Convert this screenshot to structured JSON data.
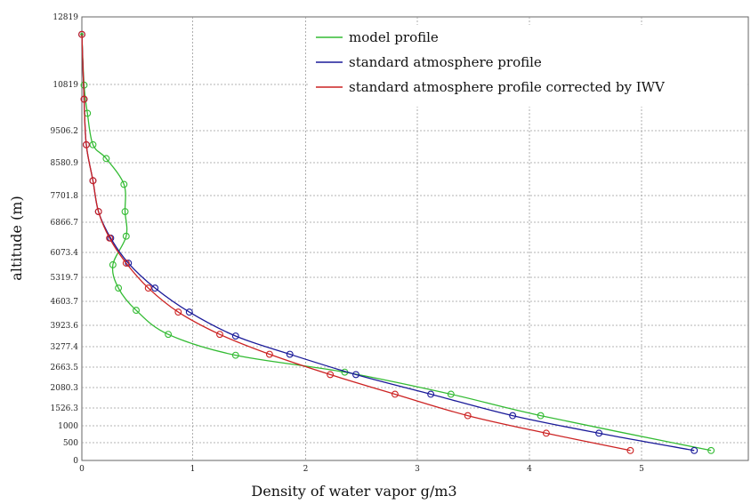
{
  "chart_data": {
    "type": "line",
    "title": "",
    "xlabel": "Density of water vapor g/m3",
    "ylabel": "altitude (m)",
    "xlim": [
      0,
      6
    ],
    "ylim": [
      0,
      12819
    ],
    "x_ticks": [
      0,
      1,
      2,
      3,
      4,
      5
    ],
    "y_ticks": [
      0,
      500,
      1000,
      1526.3,
      2080.3,
      2663.5,
      3277.4,
      3923.6,
      4603.7,
      5319.7,
      6073.4,
      6866.7,
      7701.8,
      8580.9,
      9506.2,
      10819,
      12819
    ],
    "y_tick_labels": [
      "0",
      "500",
      "1000",
      "1526.3",
      "2080.3",
      "2663.5",
      "3277.4",
      "3923.6",
      "4603.7",
      "5319.7",
      "6073.4",
      "6866.7",
      "7701.8",
      "8580.9",
      "9506.2",
      "10819",
      "12819"
    ],
    "grid": true,
    "legend_position": "top-right",
    "series": [
      {
        "name": "model profile",
        "color": "#33bb33",
        "x": [
          5.62,
          4.1,
          3.3,
          2.35,
          1.38,
          0.78,
          0.49,
          0.33,
          0.28,
          0.4,
          0.39,
          0.38,
          0.22,
          0.1,
          0.05,
          0.02,
          0.0
        ],
        "y": [
          280,
          1300,
          1900,
          2520,
          3020,
          3650,
          4350,
          5000,
          5700,
          6500,
          7200,
          8000,
          8700,
          9100,
          10000,
          10800,
          12300
        ]
      },
      {
        "name": "standard atmosphere profile",
        "color": "#1a1a99",
        "x": [
          5.47,
          4.62,
          3.85,
          3.12,
          2.45,
          1.86,
          1.38,
          0.97,
          0.66,
          0.42,
          0.26,
          0.15,
          0.1,
          0.04,
          0.02,
          0.0
        ],
        "y": [
          280,
          780,
          1300,
          1900,
          2450,
          3050,
          3600,
          4300,
          5000,
          5750,
          6450,
          7200,
          8100,
          9100,
          10400,
          12300
        ]
      },
      {
        "name": "standard atmosphere profile corrected by IWV",
        "color": "#cc2222",
        "x": [
          4.9,
          4.15,
          3.45,
          2.8,
          2.22,
          1.68,
          1.24,
          0.87,
          0.6,
          0.4,
          0.25,
          0.15,
          0.1,
          0.04,
          0.02,
          0.0
        ],
        "y": [
          280,
          780,
          1300,
          1900,
          2450,
          3050,
          3650,
          4300,
          5000,
          5750,
          6450,
          7200,
          8100,
          9100,
          10400,
          12300
        ]
      }
    ]
  }
}
